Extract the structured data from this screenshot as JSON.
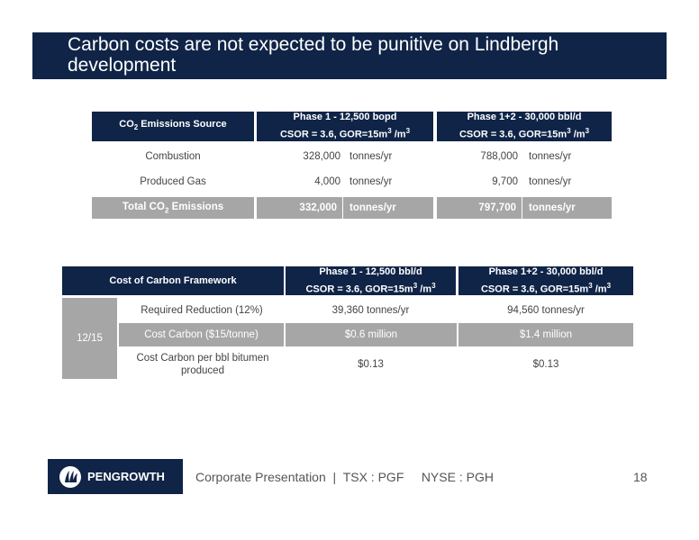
{
  "title": "Carbon costs are not expected to be punitive on Lindbergh development",
  "table1": {
    "headers": [
      {
        "line1": "CO2 Emissions Source"
      },
      {
        "line1": "Phase 1 - 12,500 bopd",
        "line2": "CSOR = 3.6, GOR=15m3 /m3"
      },
      {
        "line1": "Phase 1+2 - 30,000 bbl/d",
        "line2": "CSOR = 3.6, GOR=15m3 /m3"
      }
    ],
    "rows": [
      {
        "source": "Combustion",
        "p1_value": "328,000",
        "p1_unit": "tonnes/yr",
        "p2_value": "788,000",
        "p2_unit": "tonnes/yr"
      },
      {
        "source": "Produced Gas",
        "p1_value": "4,000",
        "p1_unit": "tonnes/yr",
        "p2_value": "9,700",
        "p2_unit": "tonnes/yr"
      }
    ],
    "total": {
      "source": "Total CO2 Emissions",
      "p1_value": "332,000",
      "p1_unit": "tonnes/yr",
      "p2_value": "797,700",
      "p2_unit": "tonnes/yr"
    }
  },
  "table2": {
    "headers": [
      {
        "line1": "Cost of Carbon Framework"
      },
      {
        "line1": "Phase 1 - 12,500 bbl/d",
        "line2": "CSOR = 3.6, GOR=15m3 /m3"
      },
      {
        "line1": "Phase 1+2 - 30,000 bbl/d",
        "line2": "CSOR = 3.6, GOR=15m3 /m3"
      }
    ],
    "side_label": "12/15",
    "rows": [
      {
        "label": "Required Reduction (12%)",
        "p1": "39,360 tonnes/yr",
        "p2": "94,560 tonnes/yr"
      },
      {
        "label": "Cost Carbon ($15/tonne)",
        "p1": "$0.6 million",
        "p2": "$1.4 million"
      },
      {
        "label": "Cost Carbon per bbl bitumen produced",
        "p1": "$0.13",
        "p2": "$0.13"
      }
    ]
  },
  "footer": {
    "logo_text": "PENGROWTH",
    "presentation": "Corporate Presentation  |  TSX : PGF     NYSE : PGH",
    "page_number": "18"
  },
  "colors": {
    "navy": "#0f2447",
    "orange": "#e06a10",
    "grey": "#a6a6a6"
  }
}
